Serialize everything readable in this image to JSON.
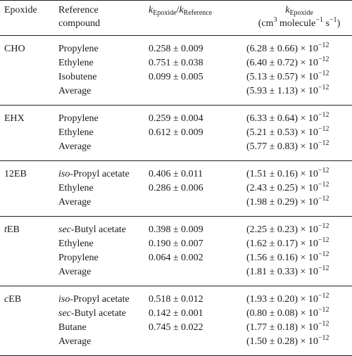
{
  "headers": {
    "col1": "Epoxide",
    "col2_line1": "Reference",
    "col2_line2": "compound",
    "col3": {
      "k1": "k",
      "sub1": "Epoxide",
      "slash": "/",
      "k2": "k",
      "sub2": "Reference"
    },
    "col4": {
      "line1_k": "k",
      "line1_sub": "Epoxide",
      "line2_a": "(cm",
      "line2_sup1": "3",
      "line2_b": " molecule",
      "line2_sup2": "−1",
      "line2_c": " s",
      "line2_sup3": "−1",
      "line2_d": ")"
    }
  },
  "groups": [
    {
      "epoxide": {
        "prefix": "",
        "name": "CHO"
      },
      "rows": [
        {
          "ref_prefix": "",
          "ref_name": "Propylene",
          "ratio": "0.258 ± 0.009",
          "rate": "(6.28 ± 0.66) × 10",
          "exp": "−12"
        },
        {
          "ref_prefix": "",
          "ref_name": "Ethylene",
          "ratio": "0.751 ± 0.038",
          "rate": "(6.40 ± 0.72) × 10",
          "exp": "−12"
        },
        {
          "ref_prefix": "",
          "ref_name": "Isobutene",
          "ratio": "0.099 ± 0.005",
          "rate": "(5.13 ± 0.57) × 10",
          "exp": "−12"
        },
        {
          "ref_prefix": "",
          "ref_name": "Average",
          "ratio": "",
          "rate": "(5.93 ± 1.13) × 10",
          "exp": "−12"
        }
      ]
    },
    {
      "epoxide": {
        "prefix": "",
        "name": "EHX"
      },
      "rows": [
        {
          "ref_prefix": "",
          "ref_name": "Propylene",
          "ratio": "0.259 ± 0.004",
          "rate": "(6.33 ± 0.64) × 10",
          "exp": "−12"
        },
        {
          "ref_prefix": "",
          "ref_name": "Ethylene",
          "ratio": "0.612 ± 0.009",
          "rate": "(5.21 ± 0.53) × 10",
          "exp": "−12"
        },
        {
          "ref_prefix": "",
          "ref_name": "Average",
          "ratio": "",
          "rate": "(5.77 ± 0.83) × 10",
          "exp": "−12"
        }
      ]
    },
    {
      "epoxide": {
        "prefix": "",
        "name": "12EB"
      },
      "rows": [
        {
          "ref_prefix": "iso",
          "ref_name": "-Propyl acetate",
          "ratio": "0.406 ± 0.011",
          "rate": "(1.51 ± 0.16) × 10",
          "exp": "−12"
        },
        {
          "ref_prefix": "",
          "ref_name": "Ethylene",
          "ratio": "0.286 ± 0.006",
          "rate": "(2.43 ± 0.25) × 10",
          "exp": "−12"
        },
        {
          "ref_prefix": "",
          "ref_name": "Average",
          "ratio": "",
          "rate": "(1.98 ± 0.29) × 10",
          "exp": "−12"
        }
      ]
    },
    {
      "epoxide": {
        "prefix": "t",
        "name": "EB"
      },
      "rows": [
        {
          "ref_prefix": "sec",
          "ref_name": "-Butyl acetate",
          "ratio": "0.398 ± 0.009",
          "rate": "(2.25 ± 0.23) × 10",
          "exp": "−12"
        },
        {
          "ref_prefix": "",
          "ref_name": "Ethylene",
          "ratio": "0.190 ± 0.007",
          "rate": "(1.62 ± 0.17) × 10",
          "exp": "−12"
        },
        {
          "ref_prefix": "",
          "ref_name": "Propylene",
          "ratio": "0.064 ± 0.002",
          "rate": "(1.56 ± 0.16) × 10",
          "exp": "−12"
        },
        {
          "ref_prefix": "",
          "ref_name": "Average",
          "ratio": "",
          "rate": "(1.81 ± 0.33) × 10",
          "exp": "−12"
        }
      ]
    },
    {
      "epoxide": {
        "prefix": "c",
        "name": "EB"
      },
      "rows": [
        {
          "ref_prefix": "iso",
          "ref_name": "-Propyl acetate",
          "ratio": "0.518 ± 0.012",
          "rate": "(1.93 ± 0.20) × 10",
          "exp": "−12"
        },
        {
          "ref_prefix": "sec",
          "ref_name": "-Butyl acetate",
          "ratio": "0.142 ± 0.001",
          "rate": "(0.80 ± 0.08) × 10",
          "exp": "−12"
        },
        {
          "ref_prefix": "",
          "ref_name": "Butane",
          "ratio": "0.745 ± 0.022",
          "rate": "(1.77 ± 0.18) × 10",
          "exp": "−12"
        },
        {
          "ref_prefix": "",
          "ref_name": "Average",
          "ratio": "",
          "rate": "(1.50 ± 0.28) × 10",
          "exp": "−12"
        }
      ]
    }
  ]
}
